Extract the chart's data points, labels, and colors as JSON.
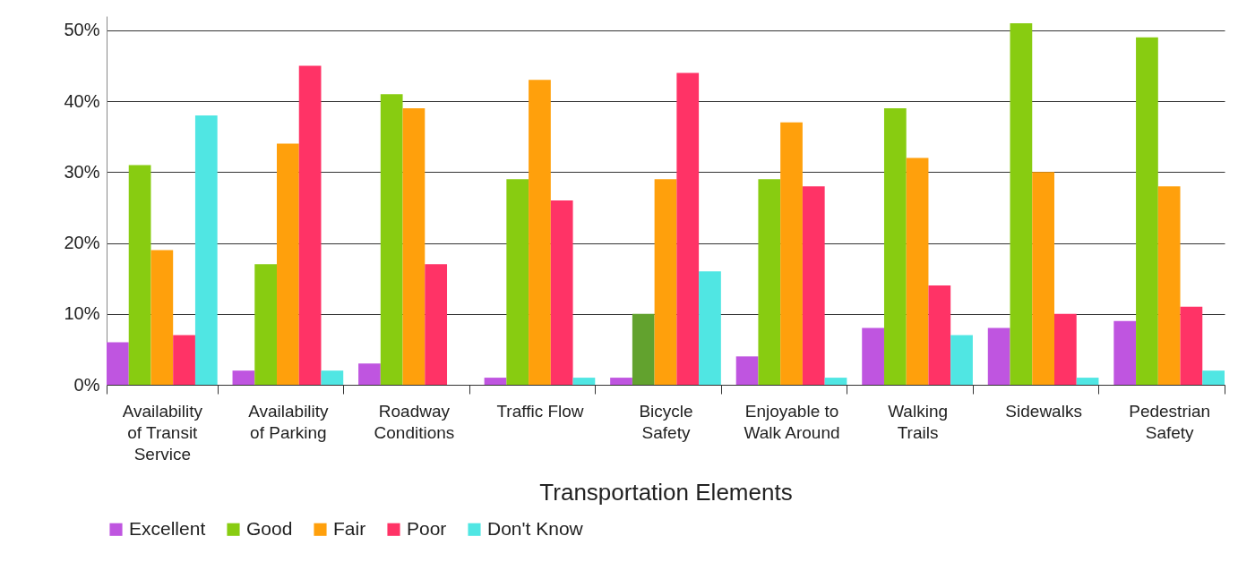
{
  "chart_data": {
    "type": "bar",
    "xlabel": "Transportation Elements",
    "categories": [
      "Availability of Transit Service",
      "Availability of Parking",
      "Roadway Conditions",
      "Traffic Flow",
      "Bicycle Safety",
      "Enjoyable to Walk Around",
      "Walking Trails",
      "Sidewalks",
      "Pedestrian Safety"
    ],
    "series": [
      {
        "name": "Excellent",
        "color": "#bf55e0",
        "values": [
          6,
          2,
          3,
          1,
          1,
          4,
          8,
          8,
          9
        ]
      },
      {
        "name": "Good",
        "color": "#88cc11",
        "colors": [
          "#88cc11",
          "#88cc11",
          "#88cc11",
          "#88cc11",
          "#62a22e",
          "#88cc11",
          "#88cc11",
          "#88cc11",
          "#88cc11"
        ],
        "values": [
          31,
          17,
          41,
          29,
          10,
          29,
          39,
          51,
          49
        ]
      },
      {
        "name": "Fair",
        "color": "#ffa00c",
        "values": [
          19,
          34,
          39,
          43,
          29,
          37,
          32,
          30,
          28
        ]
      },
      {
        "name": "Poor",
        "color": "#ff3366",
        "values": [
          7,
          45,
          17,
          26,
          44,
          28,
          14,
          10,
          11
        ]
      },
      {
        "name": "Don't Know",
        "color": "#50e6e3",
        "values": [
          38,
          2,
          0,
          1,
          16,
          1,
          7,
          1,
          2
        ]
      }
    ],
    "ylim": [
      0,
      52
    ],
    "yticks": [
      {
        "value": 0,
        "label": "0%"
      },
      {
        "value": 10,
        "label": "10%"
      },
      {
        "value": 20,
        "label": "20%"
      },
      {
        "value": 30,
        "label": "30%"
      },
      {
        "value": 40,
        "label": "40%"
      },
      {
        "value": 50,
        "label": "50%"
      }
    ],
    "grid": "y",
    "legend": "bottom"
  }
}
